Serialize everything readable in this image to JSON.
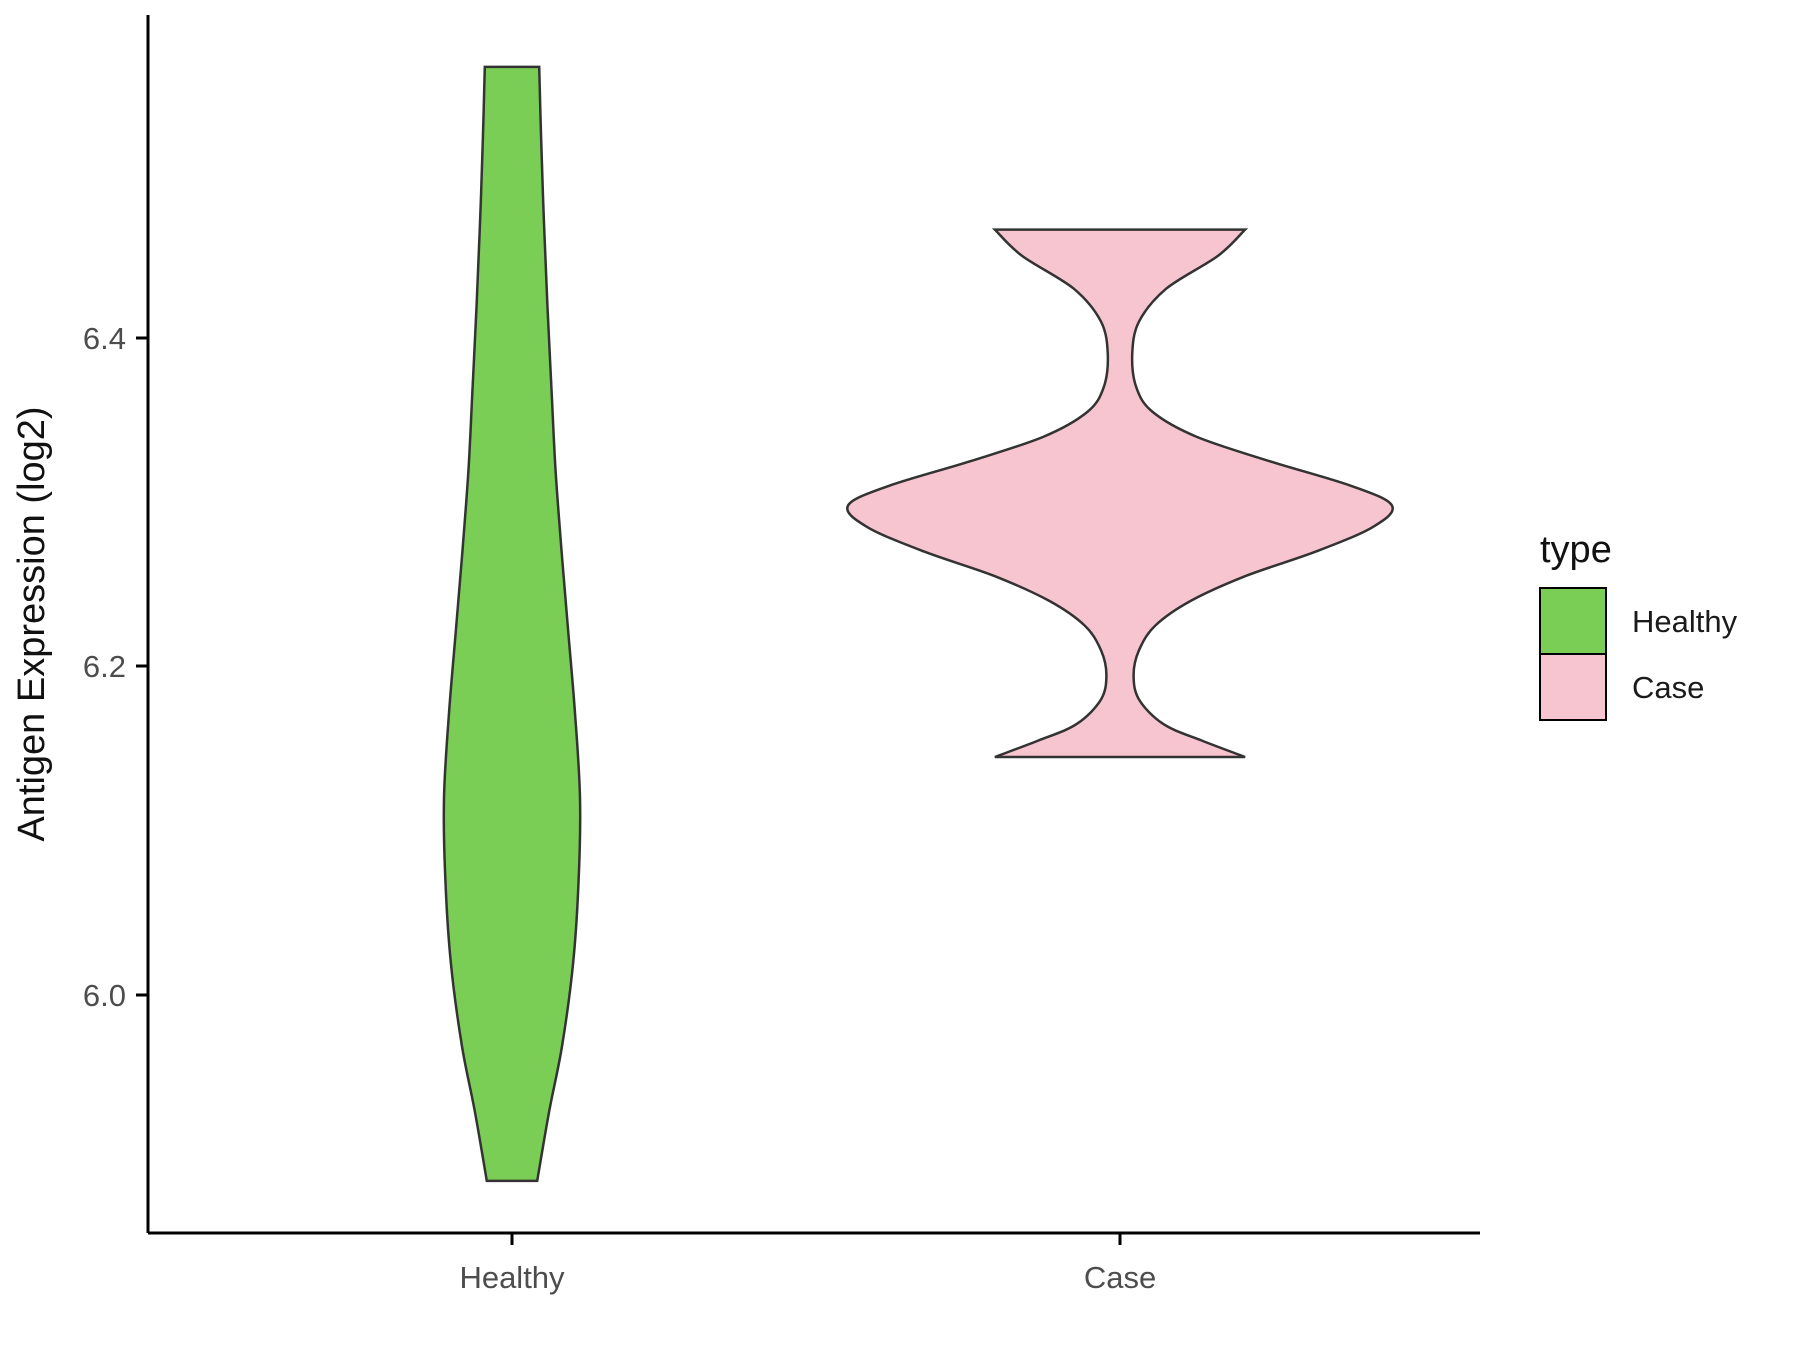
{
  "chart_data": {
    "type": "violin",
    "title": "",
    "ylabel": "Antigen Expression (log2)",
    "xlabel": "",
    "categories": [
      "Healthy",
      "Case"
    ],
    "y_tick_labels": [
      "6.4",
      "6.2",
      "6.0"
    ],
    "y_ticks": [
      6.4,
      6.2,
      6.0
    ],
    "ylim": [
      5.85,
      6.62
    ],
    "grid": false,
    "legend": {
      "title": "type",
      "position": "right",
      "entries": [
        {
          "label": "Healthy",
          "color": "#7bce55"
        },
        {
          "label": "Case",
          "color": "#f7c5d0"
        }
      ]
    },
    "series": [
      {
        "name": "Healthy",
        "fill": "#7bce55",
        "outline": "#333333",
        "profile": [
          [
            6.565,
            0.4
          ],
          [
            6.52,
            0.43
          ],
          [
            6.47,
            0.47
          ],
          [
            6.42,
            0.52
          ],
          [
            6.37,
            0.58
          ],
          [
            6.32,
            0.64
          ],
          [
            6.27,
            0.73
          ],
          [
            6.22,
            0.83
          ],
          [
            6.17,
            0.93
          ],
          [
            6.12,
            1.0
          ],
          [
            6.07,
            0.98
          ],
          [
            6.02,
            0.9
          ],
          [
            5.97,
            0.74
          ],
          [
            5.93,
            0.55
          ],
          [
            5.887,
            0.37
          ]
        ]
      },
      {
        "name": "Case",
        "fill": "#f7c5d0",
        "outline": "#333333",
        "profile": [
          [
            6.466,
            0.46
          ],
          [
            6.45,
            0.36
          ],
          [
            6.43,
            0.17
          ],
          [
            6.41,
            0.07
          ],
          [
            6.39,
            0.045
          ],
          [
            6.37,
            0.06
          ],
          [
            6.355,
            0.12
          ],
          [
            6.34,
            0.28
          ],
          [
            6.325,
            0.55
          ],
          [
            6.31,
            0.85
          ],
          [
            6.298,
            1.0
          ],
          [
            6.285,
            0.93
          ],
          [
            6.27,
            0.72
          ],
          [
            6.255,
            0.46
          ],
          [
            6.24,
            0.26
          ],
          [
            6.225,
            0.13
          ],
          [
            6.21,
            0.07
          ],
          [
            6.195,
            0.05
          ],
          [
            6.18,
            0.07
          ],
          [
            6.165,
            0.16
          ],
          [
            6.155,
            0.3
          ],
          [
            6.145,
            0.46
          ]
        ]
      }
    ]
  }
}
